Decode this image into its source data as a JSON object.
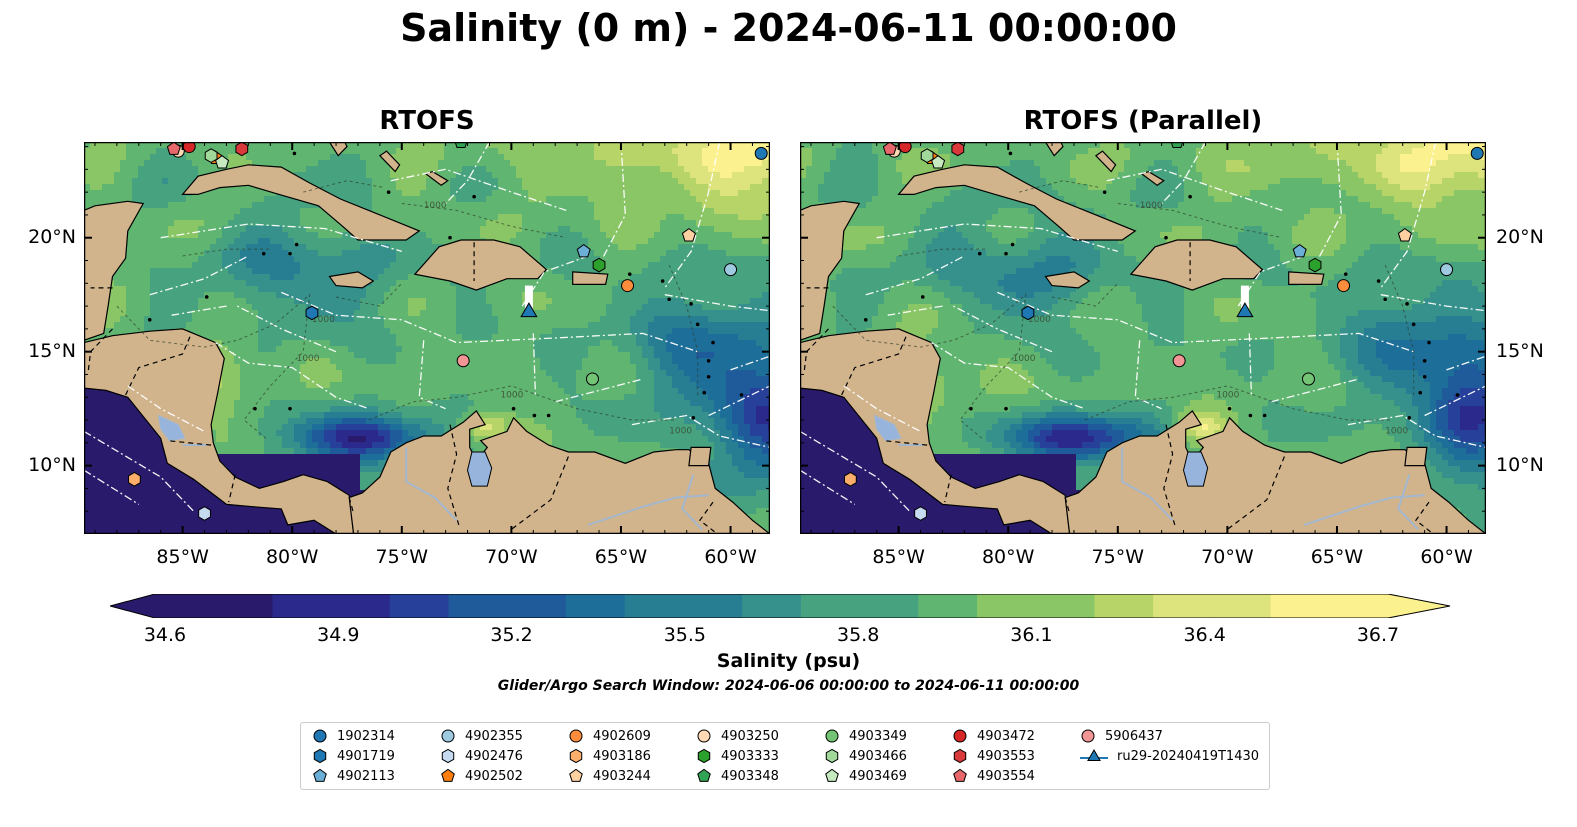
{
  "figure": {
    "title": "Salinity (0 m) - 2024-06-11 00:00:00",
    "panels": [
      {
        "title": "RTOFS",
        "variant": "a"
      },
      {
        "title": "RTOFS (Parallel)",
        "variant": "b"
      }
    ],
    "x_ticks": [
      "85°W",
      "80°W",
      "75°W",
      "70°W",
      "65°W",
      "60°W"
    ],
    "x_tick_values": [
      -85,
      -80,
      -75,
      -70,
      -65,
      -60
    ],
    "y_ticks": [
      "20°N",
      "15°N",
      "10°N"
    ],
    "y_tick_values": [
      20,
      15,
      10
    ],
    "extent": {
      "lon_min": -89.5,
      "lon_max": -58.2,
      "lat_min": 7.0,
      "lat_max": 24.2
    },
    "contour_label": "1000",
    "colorbar": {
      "label": "Salinity (psu)",
      "ticks": [
        "34.6",
        "34.9",
        "35.2",
        "35.5",
        "35.8",
        "36.1",
        "36.4",
        "36.7"
      ],
      "vmin": 34.6,
      "vmax": 36.7,
      "colors": [
        "#2a1a6b",
        "#2b2a8c",
        "#27409a",
        "#1f5a9a",
        "#1d6e98",
        "#277e92",
        "#36908c",
        "#47a37f",
        "#60b571",
        "#8bc666",
        "#b6d468",
        "#dde37d",
        "#fcf18f"
      ]
    },
    "search_window": "Glider/Argo Search Window: 2024-06-06 00:00:00 to 2024-06-11 00:00:00",
    "colors": {
      "land": "#d2b48c",
      "lake": "#96b4dc",
      "rivers": "#a3b7cf"
    }
  },
  "legend": [
    {
      "id": "1902314",
      "marker": "circle",
      "color": "#1f77b4"
    },
    {
      "id": "4901719",
      "marker": "hexagon",
      "color": "#1f77b4"
    },
    {
      "id": "4902113",
      "marker": "pentagon",
      "color": "#6baed6"
    },
    {
      "id": "4902355",
      "marker": "circle",
      "color": "#9ecae1"
    },
    {
      "id": "4902476",
      "marker": "hexagon",
      "color": "#c6dbef"
    },
    {
      "id": "4902502",
      "marker": "pentagon",
      "color": "#ff7f0e"
    },
    {
      "id": "4902609",
      "marker": "circle",
      "color": "#fd8d3c"
    },
    {
      "id": "4903186",
      "marker": "hexagon",
      "color": "#fdae6b"
    },
    {
      "id": "4903244",
      "marker": "pentagon",
      "color": "#fdd0a2"
    },
    {
      "id": "4903250",
      "marker": "circle",
      "color": "#fdd9b5"
    },
    {
      "id": "4903333",
      "marker": "hexagon",
      "color": "#2ca02c"
    },
    {
      "id": "4903348",
      "marker": "pentagon",
      "color": "#31a354"
    },
    {
      "id": "4903349",
      "marker": "circle",
      "color": "#74c476"
    },
    {
      "id": "4903466",
      "marker": "hexagon",
      "color": "#a1d99b"
    },
    {
      "id": "4903469",
      "marker": "pentagon",
      "color": "#c7e9c0"
    },
    {
      "id": "4903472",
      "marker": "circle",
      "color": "#d62728"
    },
    {
      "id": "4903553",
      "marker": "hexagon",
      "color": "#d9393b"
    },
    {
      "id": "4903554",
      "marker": "pentagon",
      "color": "#e7686a"
    },
    {
      "id": "5906437",
      "marker": "circle",
      "color": "#f19595"
    },
    {
      "id": "ru29-20240419T1430",
      "marker": "triangle-line",
      "color": "#1f77b4"
    }
  ],
  "floats": [
    {
      "id": "1902314",
      "lon": -58.6,
      "lat": 23.7
    },
    {
      "id": "4901719",
      "lon": -79.1,
      "lat": 16.7
    },
    {
      "id": "4902113",
      "lon": -66.7,
      "lat": 19.4
    },
    {
      "id": "4902355",
      "lon": -60.0,
      "lat": 18.6
    },
    {
      "id": "4902476",
      "lon": -84.0,
      "lat": 7.9
    },
    {
      "id": "4902502",
      "lon": -83.5,
      "lat": 23.5
    },
    {
      "id": "4902609",
      "lon": -64.7,
      "lat": 17.9
    },
    {
      "id": "4903186",
      "lon": -87.2,
      "lat": 9.4
    },
    {
      "id": "4903244",
      "lon": -61.9,
      "lat": 20.1
    },
    {
      "id": "4903250",
      "lon": -85.2,
      "lat": 23.8
    },
    {
      "id": "4903333",
      "lon": -66.0,
      "lat": 18.8
    },
    {
      "id": "4903348",
      "lon": -72.3,
      "lat": 24.2
    },
    {
      "id": "4903349",
      "lon": -66.3,
      "lat": 13.8
    },
    {
      "id": "4903466",
      "lon": -83.7,
      "lat": 23.6
    },
    {
      "id": "4903469",
      "lon": -83.2,
      "lat": 23.3
    },
    {
      "id": "4903472",
      "lon": -84.7,
      "lat": 24.0
    },
    {
      "id": "4903553",
      "lon": -82.3,
      "lat": 23.9
    },
    {
      "id": "4903554",
      "lon": -85.4,
      "lat": 23.9
    },
    {
      "id": "5906437",
      "lon": -72.2,
      "lat": 14.6
    }
  ],
  "glider": {
    "id": "ru29-20240419T1430",
    "lon": -69.2,
    "lat": 16.8,
    "track": [
      [
        -69.2,
        17.9
      ],
      [
        -69.2,
        16.9
      ]
    ]
  }
}
